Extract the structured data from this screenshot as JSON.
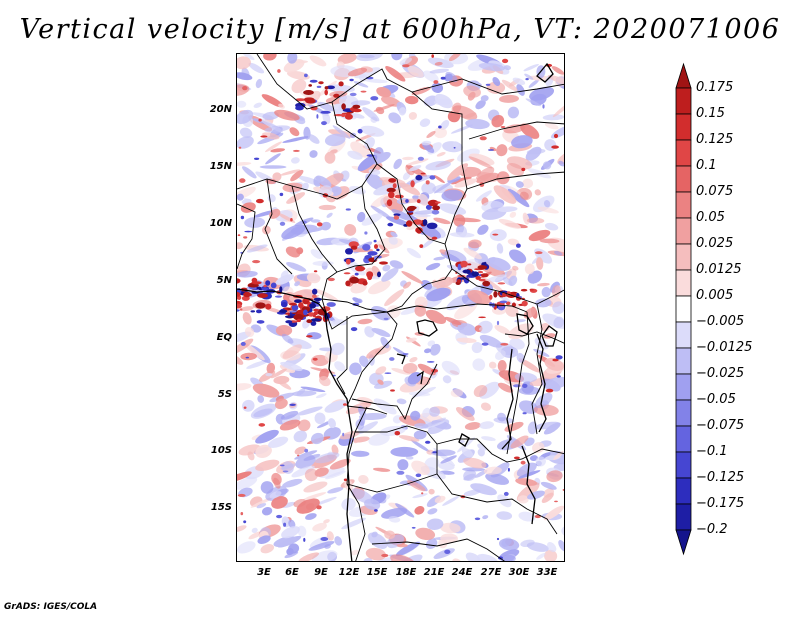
{
  "title": "Vertical velocity [m/s] at 600hPa, VT: 2020071006",
  "map": {
    "lat_labels": [
      "20N",
      "15N",
      "10N",
      "5N",
      "EQ",
      "5S",
      "10S",
      "15S"
    ],
    "lon_labels": [
      "3E",
      "6E",
      "9E",
      "12E",
      "15E",
      "18E",
      "21E",
      "24E",
      "27E",
      "30E",
      "33E"
    ],
    "field": "vertical velocity",
    "units": "m/s",
    "level": "600hPa",
    "valid_time": "2020071006"
  },
  "colorbar": {
    "labels": [
      "0.175",
      "0.15",
      "0.125",
      "0.1",
      "0.075",
      "0.05",
      "0.025",
      "0.0125",
      "0.005",
      "−0.005",
      "−0.0125",
      "−0.025",
      "−0.05",
      "−0.075",
      "−0.1",
      "−0.125",
      "−0.175",
      "−0.2"
    ],
    "colors": [
      "#a01414",
      "#be1e1e",
      "#d22d2d",
      "#e04646",
      "#e56464",
      "#eb8282",
      "#f0a0a0",
      "#f5bebe",
      "#fadcdc",
      "#ffffff",
      "#dcdcfa",
      "#bebef5",
      "#a0a0f0",
      "#8282e8",
      "#6464e0",
      "#4646d2",
      "#2d2dbe",
      "#1e1ea5",
      "#14148c"
    ]
  },
  "credit": "GrADS: IGES/COLA"
}
